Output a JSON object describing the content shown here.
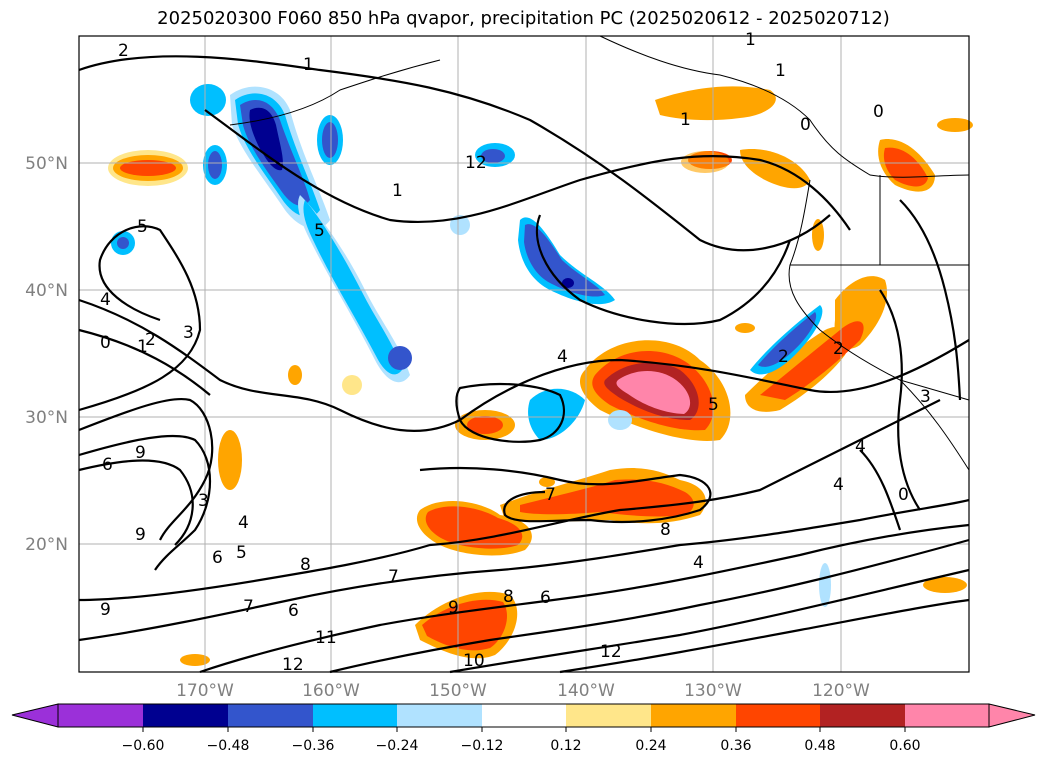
{
  "title": "2025020300 F060 850 hPa qvapor, precipitation PC (2025020612 - 2025020712)",
  "lat_labels": [
    "50°N",
    "40°N",
    "30°N",
    "20°N"
  ],
  "lon_labels": [
    "170°W",
    "160°W",
    "150°W",
    "140°W",
    "130°W",
    "120°W"
  ],
  "colorbar": {
    "tick_labels": [
      "−0.60",
      "−0.48",
      "−0.36",
      "−0.24",
      "−0.12",
      "0.12",
      "0.24",
      "0.36",
      "0.48",
      "0.60"
    ],
    "colors": [
      "#9b30d9",
      "#000090",
      "#3355cc",
      "#00bfff",
      "#b0e2ff",
      "#ffffff",
      "#ffe68a",
      "#ffa500",
      "#ff4500",
      "#b22222",
      "#ff85aa"
    ]
  },
  "contour_labels": [
    "2",
    "1",
    "1",
    "0",
    "0",
    "1",
    "5",
    "4",
    "2",
    "1",
    "3",
    "0",
    "4",
    "5",
    "9",
    "9",
    "6",
    "3",
    "4",
    "6",
    "5",
    "8",
    "7",
    "9",
    "8",
    "6",
    "7",
    "4",
    "7",
    "6",
    "8",
    "12",
    "12",
    "11",
    "10",
    "12",
    "9",
    "2",
    "5",
    "4",
    "3",
    "0",
    "1",
    "1",
    "2",
    "4"
  ]
}
